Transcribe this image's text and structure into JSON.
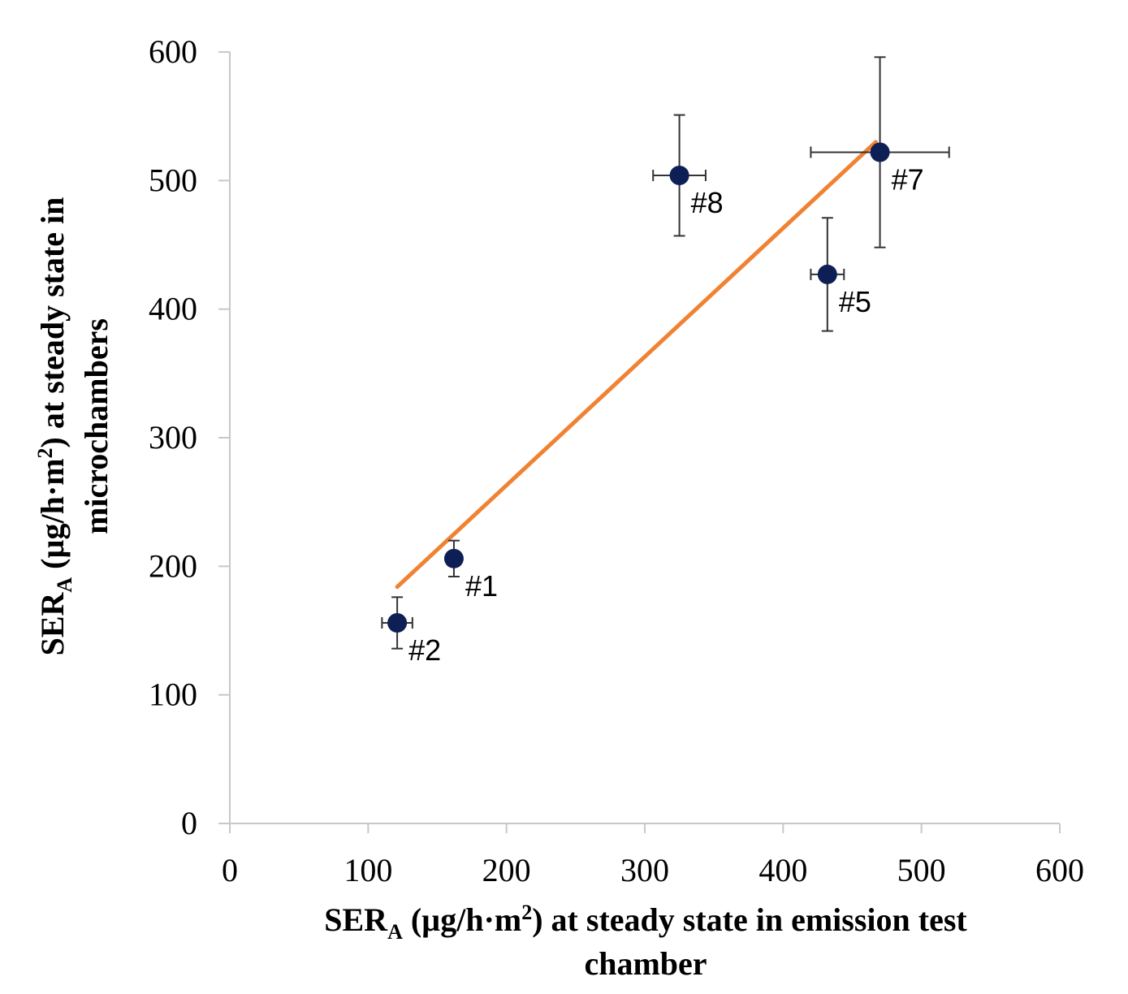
{
  "chart_data": {
    "type": "scatter",
    "title": "",
    "xlabel": {
      "prefix": "SER",
      "sub": "A",
      "unit_before": " (µg/h·m",
      "sup": "2",
      "unit_after": ") at steady state in emission test",
      "line2": "chamber"
    },
    "ylabel": {
      "prefix": "SER",
      "sub": "A",
      "unit_before": " (µg/h·m",
      "sup": "2",
      "unit_after": ") at steady state in",
      "line2": "microchambers"
    },
    "xlim": [
      0,
      600
    ],
    "ylim": [
      0,
      600
    ],
    "xticks": [
      0,
      100,
      200,
      300,
      400,
      500,
      600
    ],
    "yticks": [
      0,
      100,
      200,
      300,
      400,
      500,
      600
    ],
    "grid": false,
    "colors": {
      "marker": "#0e1f55",
      "trendline": "#f08233",
      "axis": "#c8c8c8",
      "errorbar": "#333333"
    },
    "points": [
      {
        "label": "#1",
        "x": 162,
        "y": 206,
        "xerr": 4,
        "yerr": 14
      },
      {
        "label": "#2",
        "x": 121,
        "y": 156,
        "xerr": 11,
        "yerr": 20
      },
      {
        "label": "#5",
        "x": 432,
        "y": 427,
        "xerr": 12,
        "yerr": 44
      },
      {
        "label": "#7",
        "x": 470,
        "y": 522,
        "xerr": 50,
        "yerr": 74
      },
      {
        "label": "#8",
        "x": 325,
        "y": 504,
        "xerr": 19,
        "yerr": 47
      }
    ],
    "trendline": {
      "x": [
        121,
        467
      ],
      "y": [
        184,
        530
      ]
    }
  }
}
